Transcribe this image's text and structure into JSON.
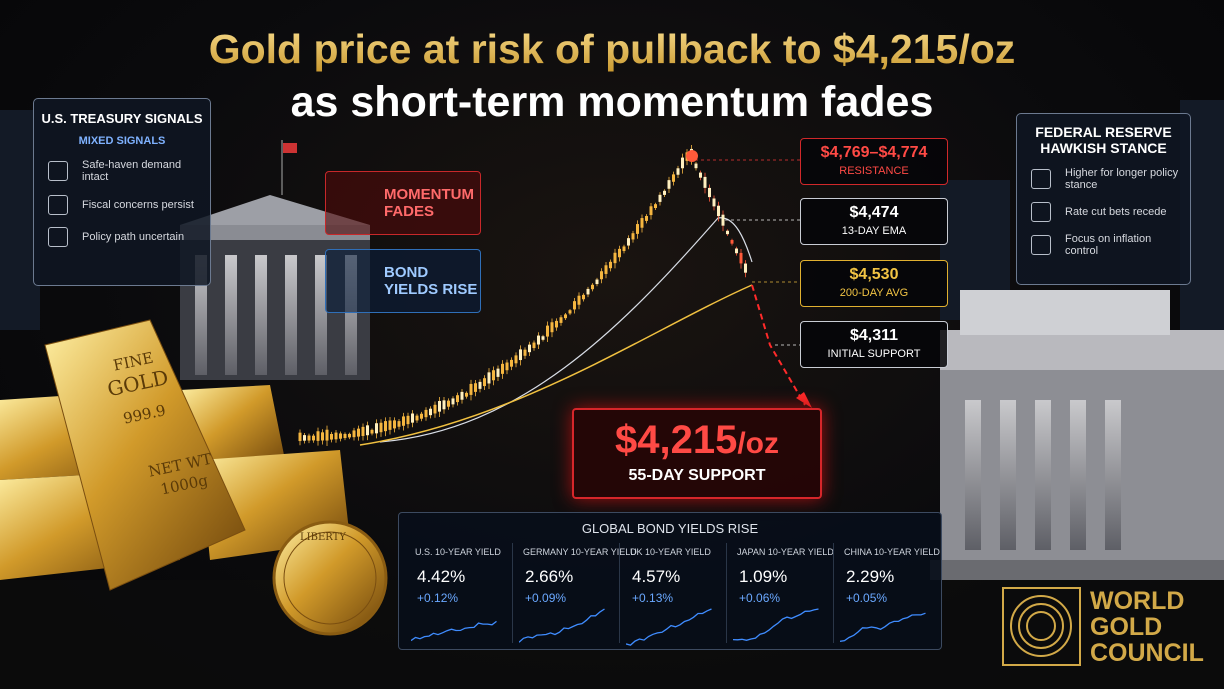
{
  "title": {
    "line1": "Gold price at risk of pullback to $4,215/oz",
    "line2": "as short-term momentum fades"
  },
  "treasury": {
    "title": "U.S. TREASURY SIGNALS",
    "subtitle": "MIXED SIGNALS",
    "items": [
      "Safe-haven demand intact",
      "Fiscal concerns persist",
      "Policy path uncertain"
    ]
  },
  "badges": [
    "MOMENTUM FADES",
    "BOND YIELDS RISE"
  ],
  "levels": [
    {
      "value": "$4,769–$4,774",
      "label": "RESISTANCE"
    },
    {
      "value": "$4,474",
      "label": "13-DAY EMA"
    },
    {
      "value": "$4,530",
      "label": "200-DAY AVG"
    },
    {
      "value": "$4,311",
      "label": "INITIAL SUPPORT"
    }
  ],
  "target": {
    "value": "$4,215",
    "unit": "/oz",
    "label": "55-DAY SUPPORT"
  },
  "fed": {
    "title": "FEDERAL RESERVE HAWKISH STANCE",
    "items": [
      "Higher for longer policy stance",
      "Rate cut bets recede",
      "Focus on inflation control"
    ]
  },
  "bars": {
    "line1": "FINE",
    "line2": "GOLD",
    "purity": "999.9",
    "weight": "NET WT",
    "mass": "1000g"
  },
  "coin": "LIBERTY",
  "yields": {
    "title": "GLOBAL BOND YIELDS RISE",
    "cards": [
      {
        "name": "U.S. 10-YEAR YIELD",
        "value": "4.42%",
        "change": "+0.12%"
      },
      {
        "name": "GERMANY 10-YEAR YIELD",
        "value": "2.66%",
        "change": "+0.09%"
      },
      {
        "name": "UK 10-YEAR YIELD",
        "value": "4.57%",
        "change": "+0.13%"
      },
      {
        "name": "JAPAN 10-YEAR YIELD",
        "value": "1.09%",
        "change": "+0.06%"
      },
      {
        "name": "CHINA 10-YEAR YIELD",
        "value": "2.29%",
        "change": "+0.05%"
      }
    ]
  },
  "logo": [
    "WORLD",
    "GOLD",
    "COUNCIL"
  ]
}
